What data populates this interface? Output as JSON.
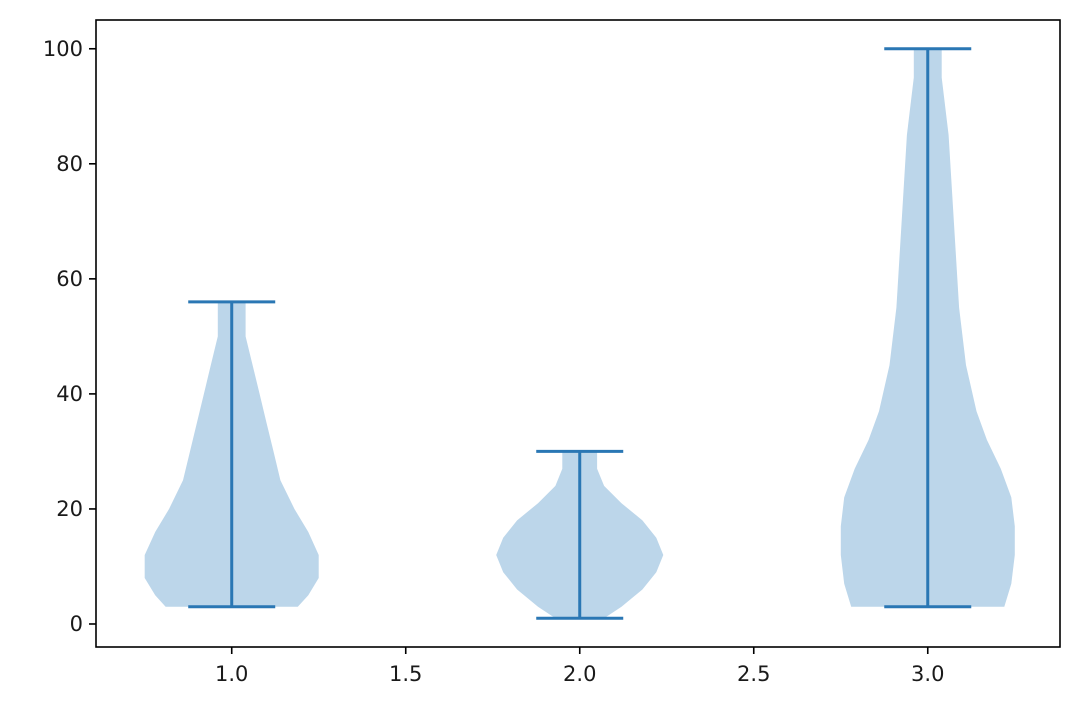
{
  "chart_data": {
    "type": "violin",
    "title": "",
    "xlabel": "",
    "ylabel": "",
    "xlim": [
      0.61,
      3.38
    ],
    "ylim": [
      -4,
      105
    ],
    "x_ticks": [
      1.0,
      1.5,
      2.0,
      2.5,
      3.0
    ],
    "x_tick_labels": [
      "1.0",
      "1.5",
      "2.0",
      "2.5",
      "3.0"
    ],
    "y_ticks": [
      0,
      20,
      40,
      60,
      80,
      100
    ],
    "y_tick_labels": [
      "0",
      "20",
      "40",
      "60",
      "80",
      "100"
    ],
    "grid": false,
    "colors": {
      "body": "#bcd6ea",
      "line": "#2a77b4"
    },
    "violins": [
      {
        "position": 1.0,
        "min": 3,
        "max": 56,
        "profile": [
          [
            3,
            0.19
          ],
          [
            5,
            0.22
          ],
          [
            8,
            0.25
          ],
          [
            12,
            0.25
          ],
          [
            16,
            0.22
          ],
          [
            20,
            0.18
          ],
          [
            25,
            0.14
          ],
          [
            30,
            0.12
          ],
          [
            35,
            0.1
          ],
          [
            40,
            0.08
          ],
          [
            45,
            0.06
          ],
          [
            50,
            0.04
          ],
          [
            56,
            0.04
          ]
        ]
      },
      {
        "position": 2.0,
        "min": 1,
        "max": 30,
        "profile": [
          [
            1,
            0.07
          ],
          [
            3,
            0.12
          ],
          [
            6,
            0.18
          ],
          [
            9,
            0.22
          ],
          [
            12,
            0.24
          ],
          [
            15,
            0.22
          ],
          [
            18,
            0.18
          ],
          [
            21,
            0.12
          ],
          [
            24,
            0.07
          ],
          [
            27,
            0.05
          ],
          [
            30,
            0.05
          ]
        ]
      },
      {
        "position": 3.0,
        "min": 3,
        "max": 100,
        "profile": [
          [
            3,
            0.22
          ],
          [
            7,
            0.24
          ],
          [
            12,
            0.25
          ],
          [
            17,
            0.25
          ],
          [
            22,
            0.24
          ],
          [
            27,
            0.21
          ],
          [
            32,
            0.17
          ],
          [
            37,
            0.14
          ],
          [
            45,
            0.11
          ],
          [
            55,
            0.09
          ],
          [
            65,
            0.08
          ],
          [
            75,
            0.07
          ],
          [
            85,
            0.06
          ],
          [
            95,
            0.04
          ],
          [
            100,
            0.04
          ]
        ]
      }
    ],
    "cap_halfwidth": 0.125
  }
}
